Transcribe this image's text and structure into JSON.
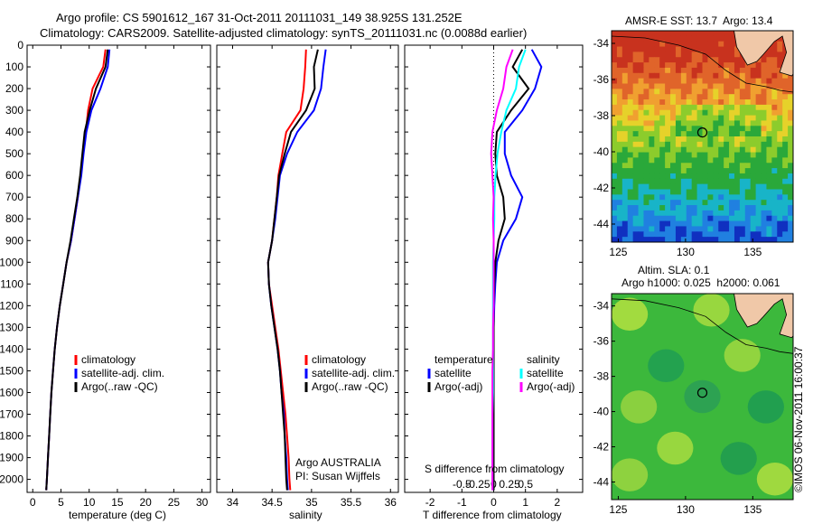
{
  "header": {
    "line1": "Argo profile: CS 5901612_167 31-Oct-2011 20111031_149 38.925S 131.252E",
    "line2": "Climatology: CARS2009. Satellite-adjusted climatology: synTS_20111031.nc (0.0088d earlier)"
  },
  "credit": "©IMOS 06-Nov-2011 16:00:37",
  "colors": {
    "climatology": "#ff0000",
    "satellite": "#0000ff",
    "argo": "#000000",
    "salinity_sat": "#00ffff",
    "salinity_argo": "#ff00ff"
  },
  "depth_axis": {
    "ylim": [
      0,
      2060
    ],
    "ticks": [
      "0",
      "100",
      "200",
      "300",
      "400",
      "500",
      "600",
      "700",
      "800",
      "900",
      "1000",
      "1100",
      "1200",
      "1300",
      "1400",
      "1500",
      "1600",
      "1700",
      "1800",
      "1900",
      "2000"
    ]
  },
  "panels": {
    "temperature": {
      "xlabel": "temperature (deg C)",
      "xticks": [
        "0",
        "5",
        "10",
        "15",
        "20",
        "25",
        "30"
      ],
      "legend": [
        "climatology",
        "satellite-adj. clim.",
        "Argo(..raw -QC)"
      ]
    },
    "salinity": {
      "xlabel": "salinity",
      "xticks": [
        "34",
        "34.5",
        "35",
        "35.5",
        "36"
      ],
      "legend": [
        "climatology",
        "satellite-adj. clim.",
        "Argo(..raw -QC)"
      ],
      "note1": "Argo AUSTRALIA",
      "note2": "PI: Susan Wijffels"
    },
    "difference": {
      "xlabel": "T difference from climatology",
      "top_label": "S difference from climatology",
      "xticks": [
        "-2",
        "-1",
        "0",
        "1",
        "2"
      ],
      "sticks": [
        "-0.5",
        "-0.25",
        "0",
        "0.25",
        "0.5"
      ],
      "legend_t_head": "temperature",
      "legend_s_head": "salinity",
      "legend_t": [
        "satellite",
        "Argo(-adj)"
      ],
      "legend_s": [
        "satellite",
        "Argo(-adj)"
      ]
    }
  },
  "maps": {
    "sst_title": "AMSR-E SST: 13.7  Argo: 13.4",
    "sla_title1": "Altim. SLA: 0.1",
    "sla_title2": "Argo h1000: 0.025  h2000: 0.061",
    "lat_ticks": [
      "-34",
      "-36",
      "-38",
      "-40",
      "-42",
      "-44"
    ],
    "lon_ticks": [
      "125",
      "130",
      "135"
    ],
    "float_lon": 131.25,
    "float_lat": -38.93
  },
  "chart_data": [
    {
      "type": "line",
      "title": "",
      "xlabel": "temperature (deg C)",
      "ylabel": "",
      "xlim": [
        -1,
        31.5
      ],
      "ylim": [
        0,
        2060
      ],
      "series": [
        {
          "name": "climatology",
          "x": [
            12.9,
            12.5,
            10.6,
            9.8,
            9.4,
            8.9,
            8.5,
            8.0,
            7.4,
            6.8,
            6.0,
            5.4,
            4.8,
            4.3,
            3.9,
            3.6,
            3.3,
            3.1,
            2.9,
            2.7,
            2.5,
            2.4
          ],
          "y": [
            20,
            100,
            200,
            300,
            400,
            500,
            600,
            700,
            800,
            900,
            1000,
            1100,
            1200,
            1300,
            1400,
            1500,
            1600,
            1700,
            1800,
            1900,
            2000,
            2050
          ]
        },
        {
          "name": "satellite-adj. clim.",
          "x": [
            13.6,
            13.3,
            12.0,
            10.4,
            9.5,
            9.0,
            8.6,
            8.0,
            7.4,
            6.8,
            6.0,
            5.4,
            4.8,
            4.3,
            3.9,
            3.6,
            3.3,
            3.1,
            2.9,
            2.7,
            2.5,
            2.4
          ],
          "y": [
            20,
            100,
            200,
            300,
            400,
            500,
            600,
            700,
            800,
            900,
            1000,
            1100,
            1200,
            1300,
            1400,
            1500,
            1600,
            1700,
            1800,
            1900,
            2000,
            2050
          ]
        },
        {
          "name": "Argo(..raw -QC)",
          "x": [
            13.3,
            12.9,
            11.2,
            10.1,
            9.2,
            8.8,
            8.4,
            7.9,
            7.3,
            6.7,
            6.0,
            5.4,
            4.8,
            4.3,
            3.9,
            3.6,
            3.3,
            3.1,
            2.9,
            2.7,
            2.5,
            2.4
          ],
          "y": [
            20,
            100,
            200,
            300,
            400,
            500,
            600,
            700,
            800,
            900,
            1000,
            1100,
            1200,
            1300,
            1400,
            1500,
            1600,
            1700,
            1800,
            1900,
            2000,
            2050
          ]
        }
      ]
    },
    {
      "type": "line",
      "title": "",
      "xlabel": "salinity",
      "ylabel": "",
      "xlim": [
        33.8,
        36.1
      ],
      "ylim": [
        0,
        2060
      ],
      "series": [
        {
          "name": "climatology",
          "x": [
            34.93,
            34.92,
            34.9,
            34.86,
            34.68,
            34.63,
            34.58,
            34.56,
            34.53,
            34.5,
            34.45,
            34.46,
            34.5,
            34.54,
            34.58,
            34.61,
            34.64,
            34.67,
            34.69,
            34.71,
            34.72,
            34.73
          ],
          "y": [
            20,
            100,
            200,
            300,
            400,
            500,
            600,
            700,
            800,
            900,
            1000,
            1100,
            1200,
            1300,
            1400,
            1500,
            1600,
            1700,
            1800,
            1900,
            2000,
            2050
          ]
        },
        {
          "name": "satellite-adj. clim.",
          "x": [
            35.18,
            35.15,
            35.12,
            35.03,
            34.82,
            34.69,
            34.6,
            34.57,
            34.54,
            34.5,
            34.45,
            34.46,
            34.49,
            34.53,
            34.57,
            34.6,
            34.62,
            34.65,
            34.66,
            34.68,
            34.69,
            34.7
          ],
          "y": [
            20,
            100,
            200,
            300,
            400,
            500,
            600,
            700,
            800,
            900,
            1000,
            1100,
            1200,
            1300,
            1400,
            1500,
            1600,
            1700,
            1800,
            1900,
            2000,
            2050
          ]
        },
        {
          "name": "Argo(..raw -QC)",
          "x": [
            35.08,
            35.03,
            35.04,
            34.93,
            34.74,
            34.66,
            34.59,
            34.56,
            34.53,
            34.5,
            34.45,
            34.46,
            34.49,
            34.53,
            34.57,
            34.6,
            34.62,
            34.64,
            34.66,
            34.67,
            34.68,
            34.69
          ],
          "y": [
            20,
            100,
            200,
            300,
            400,
            500,
            600,
            700,
            800,
            900,
            1000,
            1100,
            1200,
            1300,
            1400,
            1500,
            1600,
            1700,
            1800,
            1900,
            2000,
            2050
          ]
        }
      ]
    },
    {
      "type": "line",
      "title": "",
      "xlabel": "T difference from climatology",
      "x2label": "S difference from climatology",
      "ylabel": "",
      "xlim": [
        -2.8,
        2.8
      ],
      "ylim": [
        0,
        2060
      ],
      "series": [
        {
          "name": "temperature satellite",
          "x": [
            1.2,
            1.5,
            1.3,
            0.9,
            0.35,
            0.35,
            0.55,
            0.9,
            0.7,
            0.3,
            0.1,
            0.05,
            0.02,
            0.0,
            0.0,
            0.0,
            0.0,
            0.0,
            0.0,
            0.0,
            0.0,
            0.0
          ],
          "y": [
            20,
            100,
            200,
            300,
            400,
            500,
            600,
            700,
            800,
            900,
            1000,
            1100,
            1200,
            1300,
            1400,
            1500,
            1600,
            1700,
            1800,
            1900,
            2000,
            2050
          ]
        },
        {
          "name": "temperature Argo(-adj)",
          "x": [
            0.9,
            0.6,
            1.1,
            0.55,
            0.1,
            0.05,
            0.1,
            0.3,
            0.35,
            0.15,
            0.05,
            0.02,
            0.0,
            0.0,
            0.0,
            0.0,
            0.0,
            0.0,
            0.0,
            0.0,
            0.0,
            0.0
          ],
          "y": [
            20,
            100,
            200,
            300,
            400,
            500,
            600,
            700,
            800,
            900,
            1000,
            1100,
            1200,
            1300,
            1400,
            1500,
            1600,
            1700,
            1800,
            1900,
            2000,
            2050
          ]
        },
        {
          "name": "salinity satellite",
          "x": [
            0.5,
            0.4,
            0.35,
            0.2,
            0.12,
            0.06,
            0.03,
            0.01,
            0.01,
            0.0,
            -0.01,
            -0.01,
            -0.01,
            -0.01,
            -0.01,
            -0.01,
            -0.01,
            -0.02,
            -0.02,
            -0.02,
            -0.02,
            -0.02
          ],
          "y": [
            20,
            100,
            200,
            300,
            400,
            500,
            600,
            700,
            800,
            900,
            1000,
            1100,
            1200,
            1300,
            1400,
            1500,
            1600,
            1700,
            1800,
            1900,
            2000,
            2050
          ]
        },
        {
          "name": "salinity Argo(-adj)",
          "x": [
            0.3,
            0.2,
            0.15,
            0.05,
            -0.02,
            -0.04,
            -0.02,
            0.0,
            -0.01,
            0.0,
            0.0,
            0.0,
            0.0,
            -0.01,
            -0.01,
            -0.02,
            -0.02,
            -0.02,
            -0.02,
            -0.02,
            -0.02,
            -0.02
          ],
          "y": [
            20,
            100,
            200,
            300,
            400,
            500,
            600,
            700,
            800,
            900,
            1000,
            1100,
            1200,
            1300,
            1400,
            1500,
            1600,
            1700,
            1800,
            1900,
            2000,
            2050
          ]
        }
      ]
    }
  ]
}
